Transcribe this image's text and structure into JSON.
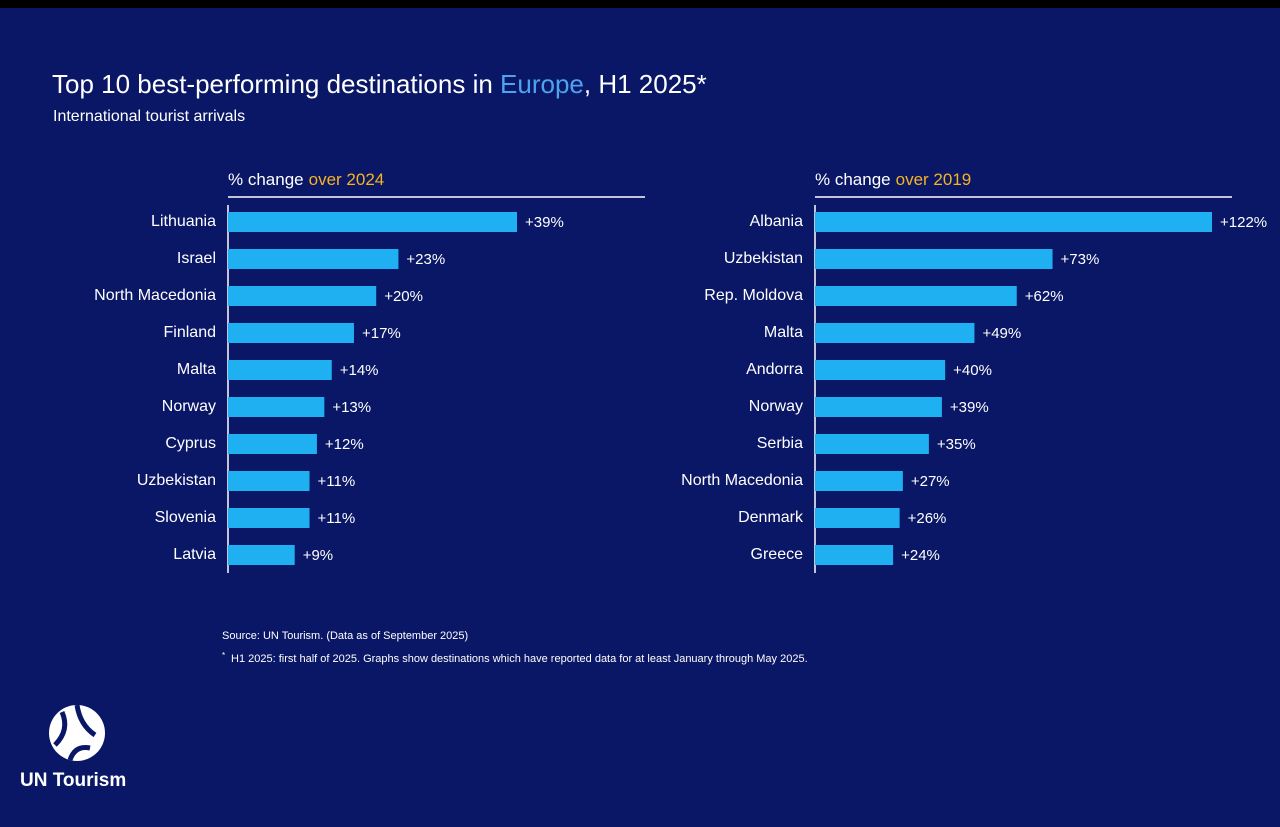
{
  "header": {
    "title": {
      "before": "Top 10 best-performing destinations in ",
      "highlight": "Europe",
      "after": ", H1 2025*"
    },
    "subtitle": "International tourist arrivals"
  },
  "chart_data": [
    {
      "type": "bar",
      "orientation": "horizontal",
      "title": {
        "text": "% change",
        "highlight": "over 2024"
      },
      "categories": [
        "Lithuania",
        "Israel",
        "North Macedonia",
        "Finland",
        "Malta",
        "Norway",
        "Cyprus",
        "Uzbekistan",
        "Slovenia",
        "Latvia"
      ],
      "values": [
        39,
        23,
        20,
        17,
        14,
        13,
        12,
        11,
        11,
        9
      ],
      "value_labels": [
        "+39%",
        "+23%",
        "+20%",
        "+17%",
        "+14%",
        "+13%",
        "+12%",
        "+11%",
        "+11%",
        "+9%"
      ],
      "color": "#1fb0f2"
    },
    {
      "type": "bar",
      "orientation": "horizontal",
      "title": {
        "text": "% change",
        "highlight": "over 2019"
      },
      "categories": [
        "Albania",
        "Uzbekistan",
        "Rep. Moldova",
        "Malta",
        "Andorra",
        "Norway",
        "Serbia",
        "North Macedonia",
        "Denmark",
        "Greece"
      ],
      "values": [
        122,
        73,
        62,
        49,
        40,
        39,
        35,
        27,
        26,
        24
      ],
      "value_labels": [
        "+122%",
        "+73%",
        "+62%",
        "+49%",
        "+40%",
        "+39%",
        "+35%",
        "+27%",
        "+26%",
        "+24%"
      ],
      "color": "#1fb0f2"
    }
  ],
  "footer": {
    "source": "Source: UN Tourism. (Data as of September 2025)",
    "note": {
      "mark": "*",
      "text": "H1 2025: first half of 2025. Graphs show destinations which have reported data for at least January through May 2025."
    }
  },
  "logo": {
    "text": "UN Tourism"
  }
}
